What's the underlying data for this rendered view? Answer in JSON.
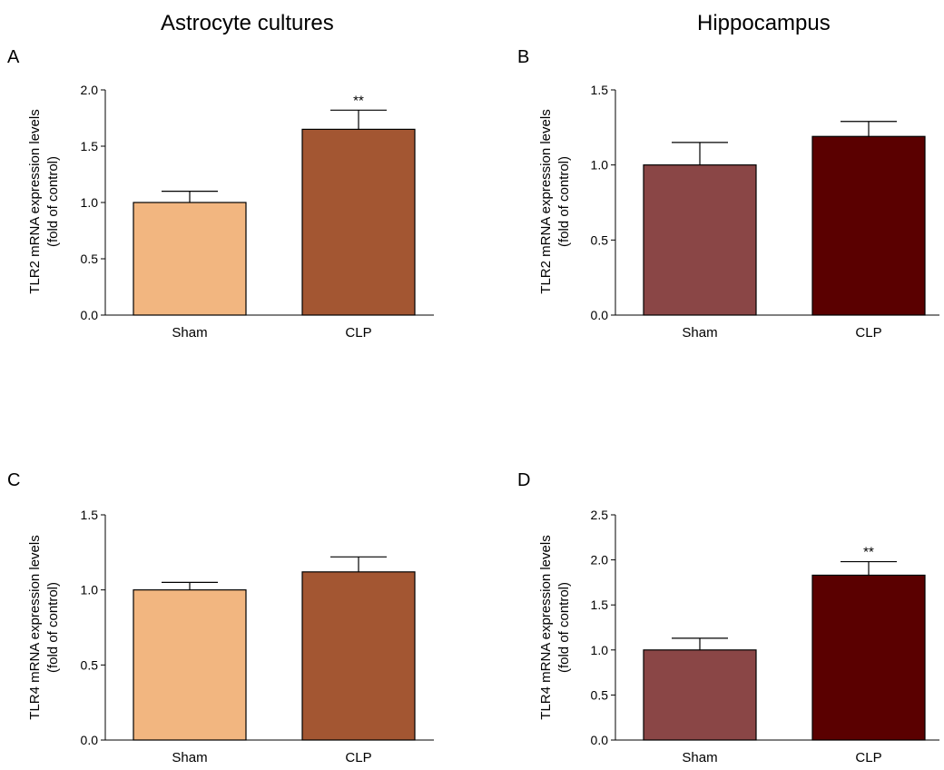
{
  "column_titles": [
    "Astrocyte cultures",
    "Hippocampus"
  ],
  "colors": {
    "astro_sham": "#f2b680",
    "astro_clp": "#a35632",
    "hippo_sham": "#8a4646",
    "hippo_clp": "#5a0000",
    "axis": "#000000"
  },
  "chart_data": [
    {
      "panel": "A",
      "type": "bar",
      "categories": [
        "Sham",
        "CLP"
      ],
      "values": [
        1.0,
        1.65
      ],
      "errors": [
        0.1,
        0.17
      ],
      "significance": [
        "",
        "**"
      ],
      "ylabel": [
        "TLR2 mRNA expression levels",
        "(fold of control)"
      ],
      "ylim": [
        0,
        2.0
      ],
      "yticks": [
        "0.0",
        "0.5",
        "1.0",
        "1.5",
        "2.0"
      ],
      "colors": [
        "#f2b680",
        "#a35632"
      ]
    },
    {
      "panel": "B",
      "type": "bar",
      "categories": [
        "Sham",
        "CLP"
      ],
      "values": [
        1.0,
        1.19
      ],
      "errors": [
        0.15,
        0.1
      ],
      "significance": [
        "",
        ""
      ],
      "ylabel": [
        "TLR2 mRNA expression levels",
        "(fold of control)"
      ],
      "ylim": [
        0,
        1.5
      ],
      "yticks": [
        "0.0",
        "0.5",
        "1.0",
        "1.5"
      ],
      "colors": [
        "#8a4646",
        "#5a0000"
      ]
    },
    {
      "panel": "C",
      "type": "bar",
      "categories": [
        "Sham",
        "CLP"
      ],
      "values": [
        1.0,
        1.12
      ],
      "errors": [
        0.05,
        0.1
      ],
      "significance": [
        "",
        ""
      ],
      "ylabel": [
        "TLR4 mRNA expression levels",
        "(fold of control)"
      ],
      "ylim": [
        0,
        1.5
      ],
      "yticks": [
        "0.0",
        "0.5",
        "1.0",
        "1.5"
      ],
      "colors": [
        "#f2b680",
        "#a35632"
      ]
    },
    {
      "panel": "D",
      "type": "bar",
      "categories": [
        "Sham",
        "CLP"
      ],
      "values": [
        1.0,
        1.83
      ],
      "errors": [
        0.13,
        0.15
      ],
      "significance": [
        "",
        "**"
      ],
      "ylabel": [
        "TLR4 mRNA expression levels",
        "(fold of control)"
      ],
      "ylim": [
        0,
        2.5
      ],
      "yticks": [
        "0.0",
        "0.5",
        "1.0",
        "1.5",
        "2.0",
        "2.5"
      ],
      "colors": [
        "#8a4646",
        "#5a0000"
      ]
    }
  ]
}
